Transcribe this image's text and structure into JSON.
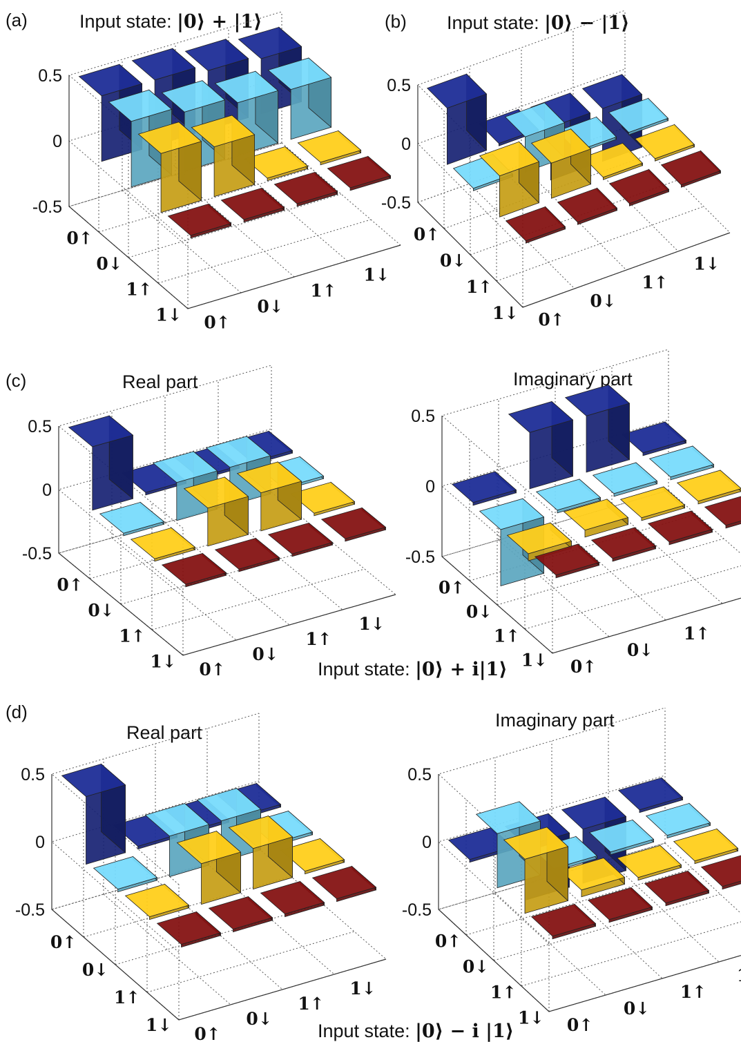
{
  "colors": {
    "row_0up": "#1c2a8c",
    "row_0down": "#6fcbe9",
    "row_1up": "#f2c019",
    "row_1down": "#7b1212",
    "ghost": "#bdbdbd"
  },
  "axis_labels": [
    "0↑",
    "0↓",
    "1↑",
    "1↓"
  ],
  "panel_labels": {
    "a": "(a)",
    "b": "(b)",
    "c": "(c)",
    "d": "(d)"
  },
  "captions": {
    "a_prefix": "Input state: ",
    "a_state": "|0⟩ + |1⟩",
    "b_prefix": "Input state: ",
    "b_state": "|0⟩ − |1⟩",
    "c_real": "Real part",
    "c_imag": "Imaginary part",
    "c_prefix": "Input state: ",
    "c_state": "|0⟩ + i|1⟩",
    "d_real": "Real part",
    "d_imag": "Imaginary part",
    "d_prefix": "Input state: ",
    "d_state": "|0⟩ − i |1⟩"
  },
  "chart_data": [
    {
      "id": "a",
      "type": "bar3d",
      "zlim": [
        -0.5,
        0.5
      ],
      "zticks": [
        "0.5",
        "0",
        "-0.5"
      ],
      "rows": [
        "0↑",
        "0↓",
        "1↑",
        "1↓"
      ],
      "cols": [
        "0↑",
        "0↓",
        "1↑",
        "1↓"
      ],
      "values": [
        [
          0.5,
          0.5,
          0.45,
          0.42
        ],
        [
          0.5,
          0.45,
          0.4,
          0.38
        ],
        [
          0.45,
          0.38,
          0.0,
          0.0
        ],
        [
          0.0,
          0.0,
          0.0,
          0.0
        ]
      ]
    },
    {
      "id": "b",
      "type": "bar3d",
      "zlim": [
        -0.5,
        0.5
      ],
      "zticks": [
        "0.5",
        "0",
        "-0.5"
      ],
      "rows": [
        "0↑",
        "0↓",
        "1↑",
        "1↓"
      ],
      "cols": [
        "0↑",
        "0↓",
        "1↑",
        "1↓"
      ],
      "values": [
        [
          0.48,
          0.02,
          -0.45,
          -0.45
        ],
        [
          0.02,
          0.3,
          0.0,
          0.0
        ],
        [
          0.35,
          0.3,
          0.0,
          0.0
        ],
        [
          0.0,
          0.0,
          0.0,
          0.0
        ]
      ]
    },
    {
      "id": "c_real",
      "type": "bar3d",
      "zlim": [
        -0.5,
        0.5
      ],
      "zticks": [
        "0.5",
        "0",
        "-0.5"
      ],
      "rows": [
        "0↑",
        "0↓",
        "1↑",
        "1↓"
      ],
      "cols": [
        "0↑",
        "0↓",
        "1↑",
        "1↓"
      ],
      "values": [
        [
          0.5,
          0.0,
          0.0,
          0.0
        ],
        [
          0.0,
          0.3,
          0.3,
          0.0
        ],
        [
          0.0,
          0.3,
          0.3,
          0.0
        ],
        [
          0.0,
          0.0,
          0.0,
          0.0
        ]
      ]
    },
    {
      "id": "c_imag",
      "type": "bar3d",
      "zlim": [
        -0.5,
        0.5
      ],
      "zticks": [
        "0.5",
        "0",
        "-0.5"
      ],
      "rows": [
        "0↑",
        "0↓",
        "1↑",
        "1↓"
      ],
      "cols": [
        "0↑",
        "0↓",
        "1↑",
        "1↓"
      ],
      "values": [
        [
          0.0,
          0.4,
          0.4,
          0.0
        ],
        [
          -0.4,
          0.0,
          0.0,
          0.0
        ],
        [
          -0.05,
          0.05,
          0.0,
          0.0
        ],
        [
          0.0,
          0.0,
          0.0,
          0.0
        ]
      ]
    },
    {
      "id": "d_real",
      "type": "bar3d",
      "zlim": [
        -0.5,
        0.5
      ],
      "zticks": [
        "0.5",
        "0",
        "-0.5"
      ],
      "rows": [
        "0↑",
        "0↓",
        "1↑",
        "1↓"
      ],
      "cols": [
        "0↑",
        "0↓",
        "1↑",
        "1↓"
      ],
      "values": [
        [
          0.5,
          0.0,
          0.0,
          0.0
        ],
        [
          0.0,
          0.3,
          0.3,
          0.0
        ],
        [
          0.0,
          0.3,
          0.3,
          0.0
        ],
        [
          0.0,
          0.0,
          0.0,
          0.0
        ]
      ]
    },
    {
      "id": "d_imag",
      "type": "bar3d",
      "zlim": [
        -0.5,
        0.5
      ],
      "zticks": [
        "0.5",
        "0",
        "-0.5"
      ],
      "rows": [
        "0↑",
        "0↓",
        "1↑",
        "1↓"
      ],
      "cols": [
        "0↑",
        "0↓",
        "1↑",
        "1↓"
      ],
      "values": [
        [
          0.0,
          -0.4,
          -0.4,
          0.0
        ],
        [
          0.4,
          0.0,
          0.0,
          0.0
        ],
        [
          0.4,
          0.05,
          0.0,
          0.0
        ],
        [
          0.0,
          0.0,
          0.0,
          0.0
        ]
      ]
    }
  ]
}
